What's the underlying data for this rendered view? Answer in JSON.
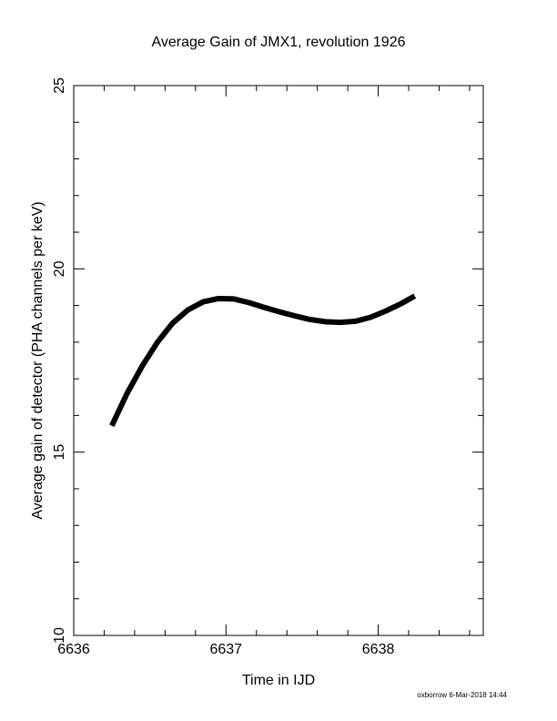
{
  "chart_data": {
    "type": "line",
    "title": "Average Gain of JMX1, revolution 1926",
    "xlabel": "Time in IJD",
    "ylabel": "Average gain of detector (PHA channels per keV)",
    "footer": "oxborrow  6-Mar-2018 14:44",
    "x": [
      6636.25,
      6636.35,
      6636.45,
      6636.55,
      6636.65,
      6636.75,
      6636.85,
      6636.95,
      6637.05,
      6637.15,
      6637.25,
      6637.35,
      6637.45,
      6637.55,
      6637.65,
      6637.75,
      6637.85,
      6637.95,
      6638.05,
      6638.15,
      6638.24
    ],
    "series": [
      {
        "color": "#000000",
        "values": [
          15.72,
          16.6,
          17.35,
          18.0,
          18.52,
          18.88,
          19.1,
          19.19,
          19.18,
          19.08,
          18.95,
          18.83,
          18.72,
          18.62,
          18.56,
          18.54,
          18.57,
          18.68,
          18.85,
          19.05,
          19.26
        ]
      }
    ],
    "xlim": [
      6636,
      6638.69
    ],
    "ylim": [
      10,
      25
    ],
    "xticks": [
      6636,
      6637,
      6638
    ],
    "yticks": [
      10,
      15,
      20,
      25
    ],
    "xminorticks": [
      6636.2,
      6636.4,
      6636.6,
      6636.8,
      6637.2,
      6637.4,
      6637.6,
      6637.8,
      6638.2,
      6638.4,
      6638.6
    ],
    "yminorticks": [
      11,
      12,
      13,
      14,
      16,
      17,
      18,
      19,
      21,
      22,
      23,
      24
    ]
  }
}
